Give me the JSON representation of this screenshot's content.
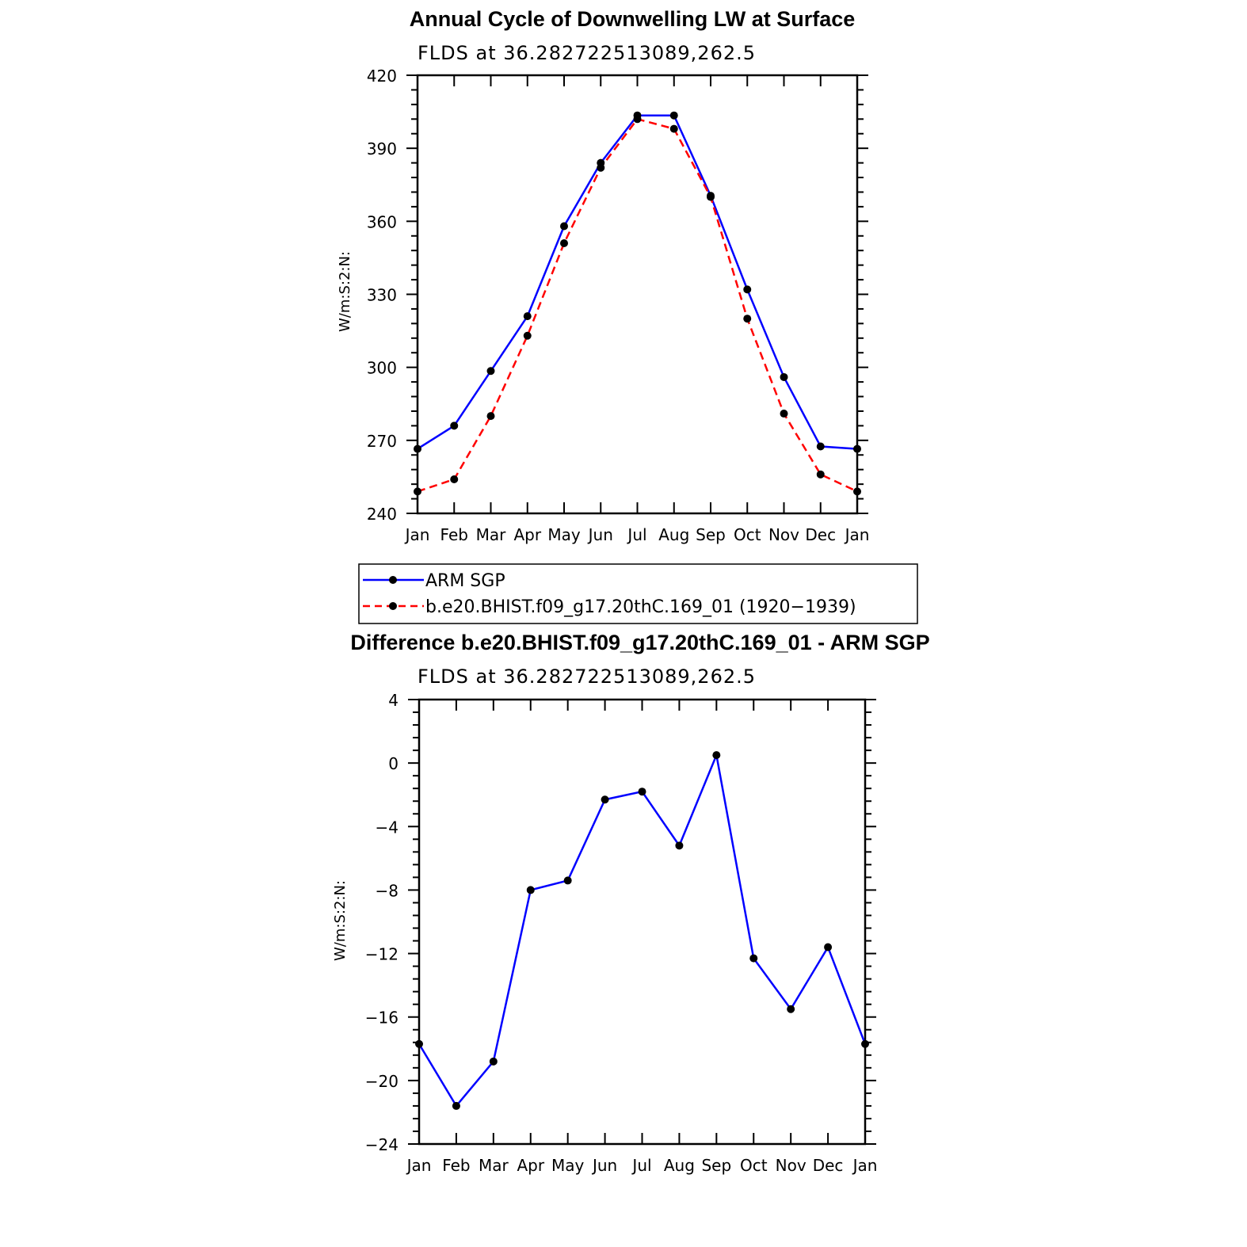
{
  "chart_data": [
    {
      "type": "line",
      "title": "Annual Cycle of Downwelling LW at Surface",
      "subtitle": "FLDS at 36.282722513089,262.5",
      "ylabel": "W/m:S:2:N:",
      "xlabel": "",
      "ylim": [
        240,
        420
      ],
      "yticks": [
        240,
        270,
        300,
        330,
        360,
        390,
        420
      ],
      "yticks_labels": [
        "240",
        "270",
        "300",
        "330",
        "360",
        "390",
        "420"
      ],
      "categories": [
        "Jan",
        "Feb",
        "Mar",
        "Apr",
        "May",
        "Jun",
        "Jul",
        "Aug",
        "Sep",
        "Oct",
        "Nov",
        "Dec",
        "Jan"
      ],
      "legend_placement": "below",
      "series": [
        {
          "name": "ARM SGP",
          "color": "#0000ff",
          "dash": "solid",
          "values": [
            266.5,
            276,
            298.5,
            321,
            358,
            384,
            403.5,
            403.5,
            370.5,
            332,
            296,
            267.5,
            266.5
          ]
        },
        {
          "name": "b.e20.BHIST.f09_g17.20thC.169_01 (1920−1939)",
          "color": "#ff0000",
          "dash": "dashed",
          "values": [
            249,
            254,
            280,
            313,
            351,
            382,
            402,
            398,
            370,
            320,
            281,
            256,
            249
          ]
        }
      ]
    },
    {
      "type": "line",
      "title": "Difference b.e20.BHIST.f09_g17.20thC.169_01 - ARM SGP",
      "subtitle": "FLDS at 36.282722513089,262.5",
      "ylabel": "W/m:S:2:N:",
      "xlabel": "",
      "ylim": [
        -24,
        4
      ],
      "yticks": [
        -24,
        -20,
        -16,
        -12,
        -8,
        -4,
        0,
        4
      ],
      "yticks_labels": [
        "−24",
        "−20",
        "−16",
        "−12",
        "−8",
        "−4",
        "0",
        "4"
      ],
      "categories": [
        "Jan",
        "Feb",
        "Mar",
        "Apr",
        "May",
        "Jun",
        "Jul",
        "Aug",
        "Sep",
        "Oct",
        "Nov",
        "Dec",
        "Jan"
      ],
      "series": [
        {
          "color": "#0000ff",
          "dash": "solid",
          "values": [
            -17.7,
            -21.6,
            -18.8,
            -8.0,
            -7.4,
            -2.3,
            -1.8,
            -5.2,
            0.5,
            -12.3,
            -15.5,
            -11.6,
            -17.7
          ]
        }
      ]
    }
  ]
}
